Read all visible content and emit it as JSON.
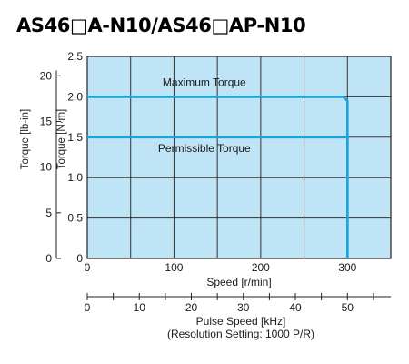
{
  "title": "AS46□A-N10/AS46□AP-N10",
  "chart_data": {
    "type": "line",
    "title": "AS46□A-N10/AS46□AP-N10",
    "xlabel": "Speed [r/min]",
    "xlim": [
      0,
      350
    ],
    "xticks": [
      0,
      100,
      200,
      300
    ],
    "ylabel": "Torque [N·m]",
    "ylim": [
      0,
      2.5
    ],
    "yticks": [
      0,
      0.5,
      1.0,
      1.5,
      2.0,
      2.5
    ],
    "ytick_labels": [
      "0",
      "0.5",
      "1.0",
      "1.5",
      "2.0",
      "2.5"
    ],
    "y2label": "Torque [lb-in]",
    "y2ticks": [
      0,
      5,
      10,
      15,
      20
    ],
    "grid": true,
    "background": "#bfe4f5",
    "line_color": "#1aa3dd",
    "x2label": "Pulse Speed [kHz]",
    "x2note": "(Resolution Setting: 1000 P/R)",
    "x2ticks": [
      0,
      10,
      20,
      30,
      40,
      50
    ],
    "x2_per_rpm": 0.16667,
    "series": [
      {
        "name": "Maximum Torque",
        "x": [
          0,
          295,
          300,
          300
        ],
        "y": [
          2.0,
          2.0,
          1.95,
          0
        ]
      },
      {
        "name": "Permissible Torque",
        "x": [
          0,
          300,
          300
        ],
        "y": [
          1.5,
          1.5,
          0
        ]
      }
    ]
  }
}
